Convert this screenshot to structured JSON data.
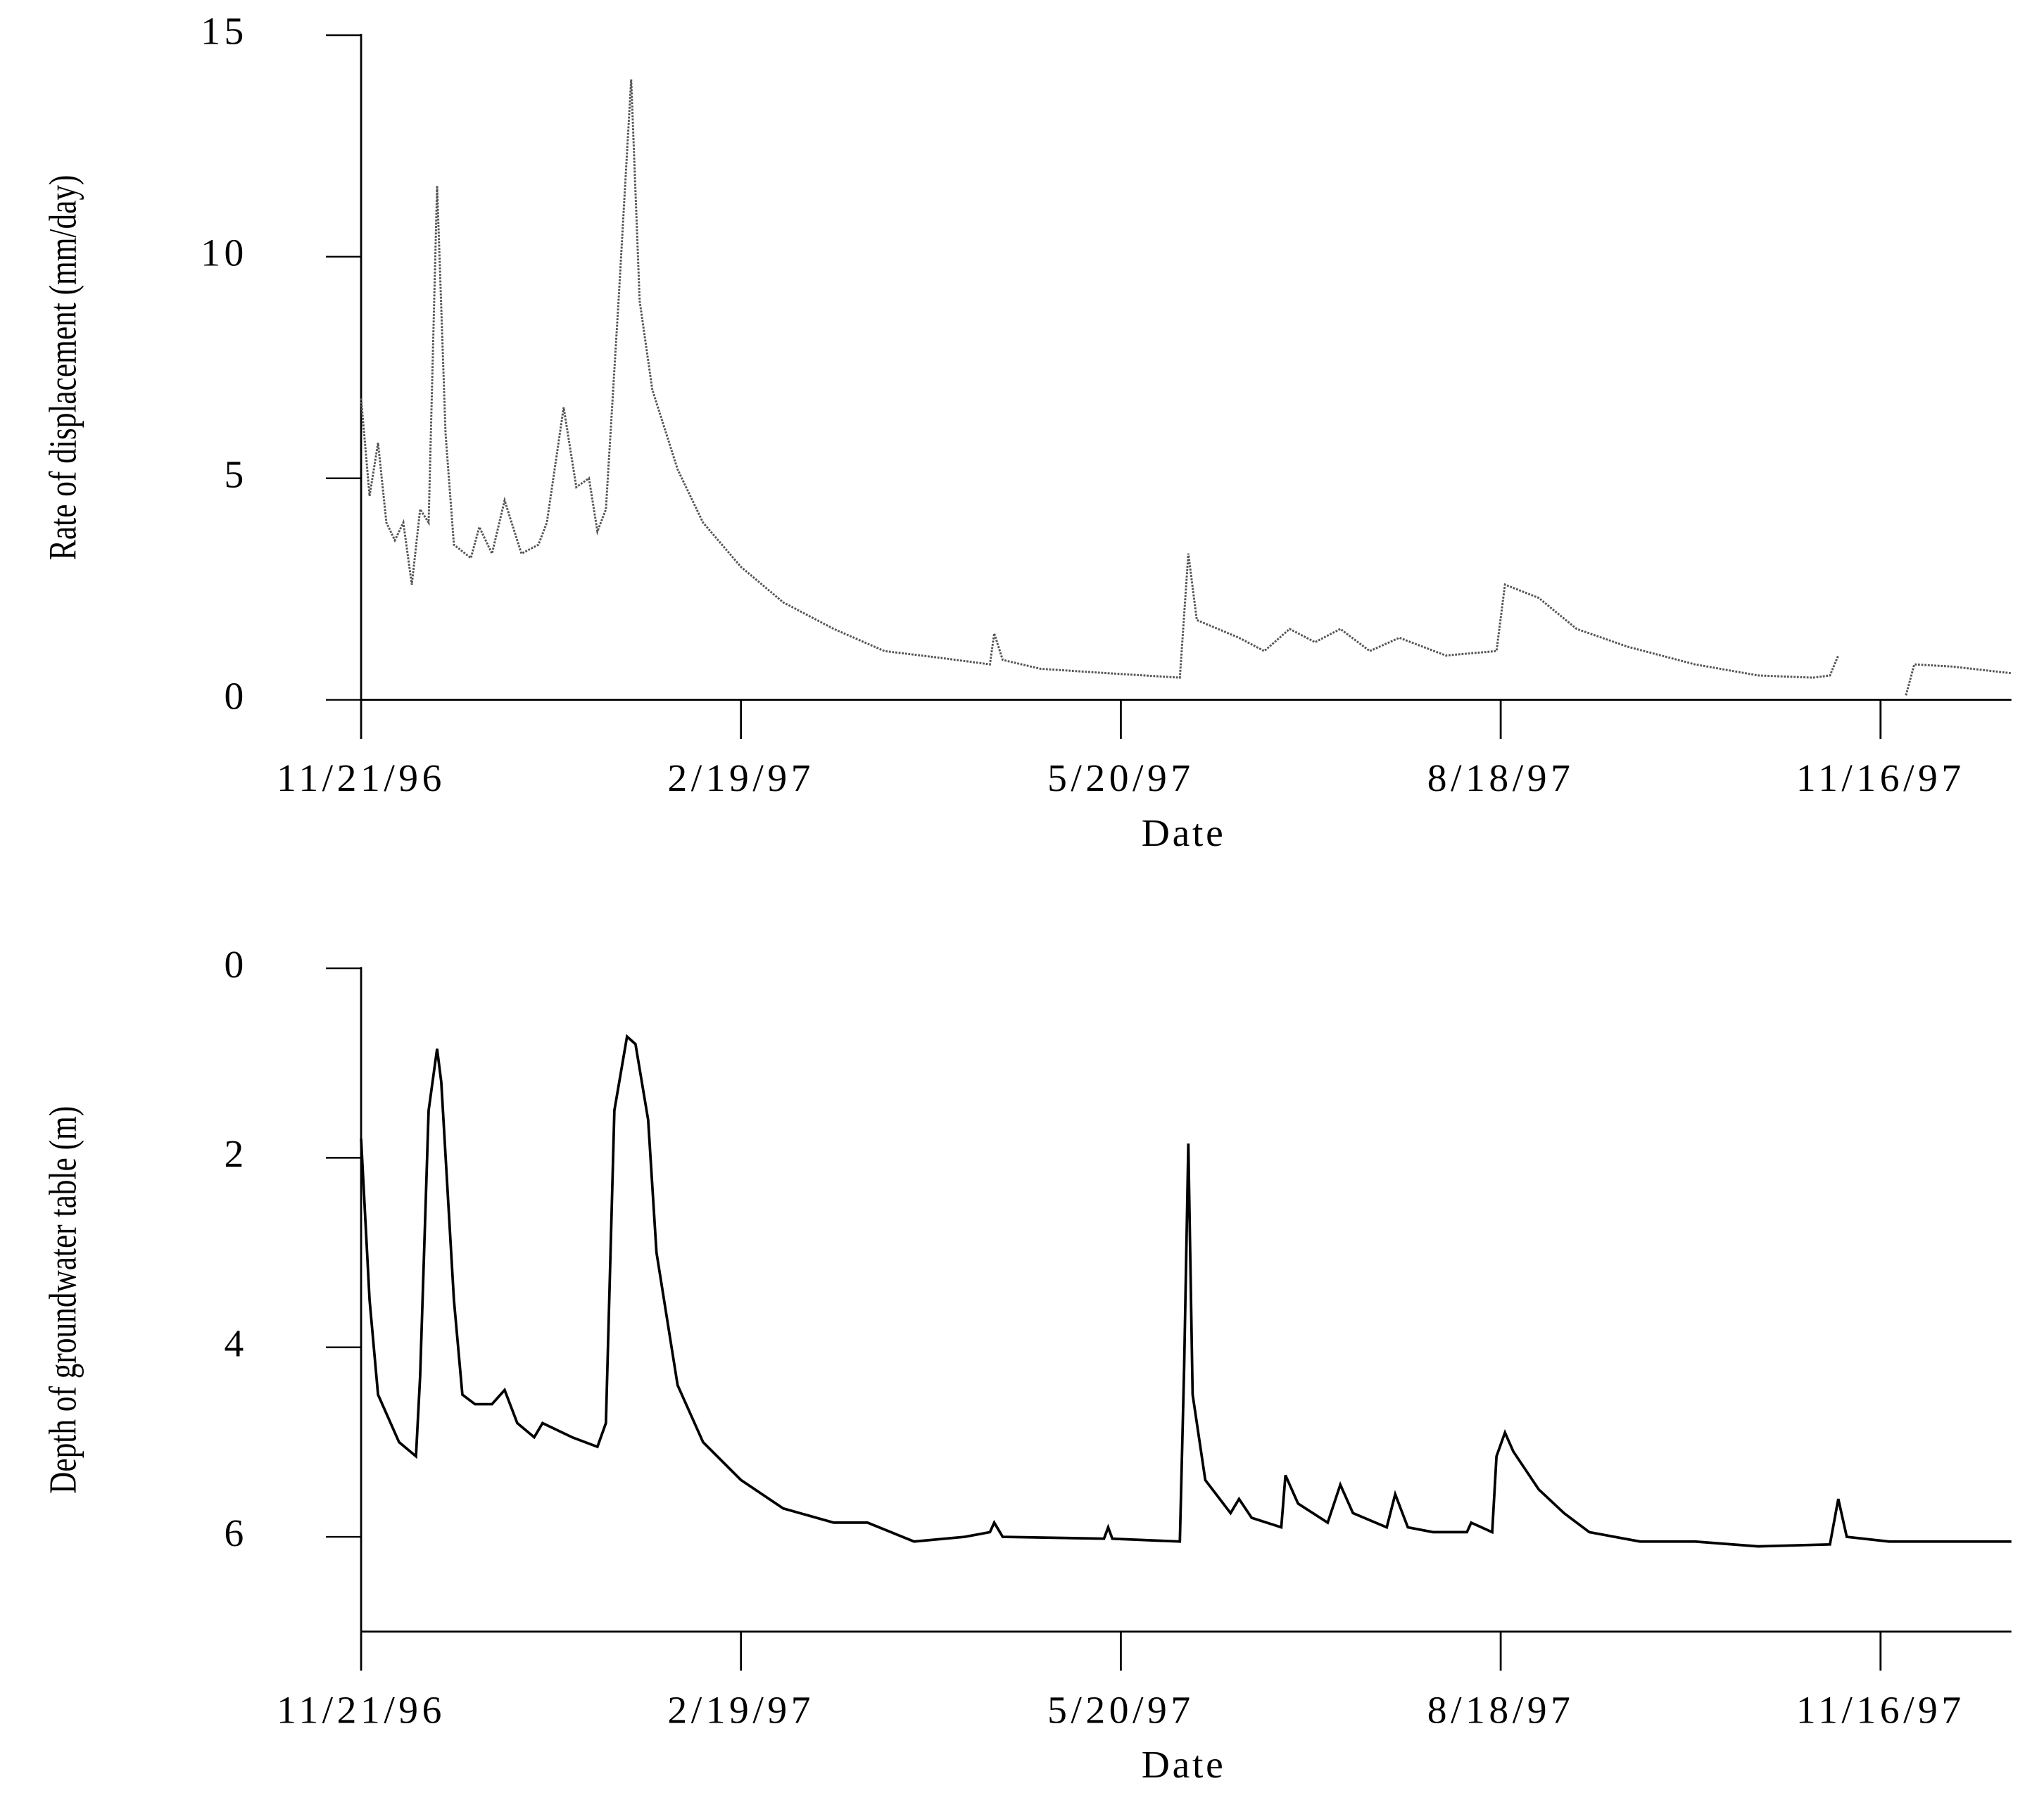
{
  "chart_data": [
    {
      "type": "line",
      "ylabel": "Rate of displacement (mm/day)",
      "xlabel": "Date",
      "color": "#555555",
      "line_style": "dotted",
      "x": [
        "1996-11-21",
        "1996-11-23",
        "1996-11-25",
        "1996-11-27",
        "1996-11-29",
        "1996-12-01",
        "1996-12-03",
        "1996-12-05",
        "1996-12-07",
        "1996-12-09",
        "1996-12-11",
        "1996-12-13",
        "1996-12-17",
        "1996-12-19",
        "1996-12-22",
        "1996-12-25",
        "1996-12-29",
        "1997-01-02",
        "1997-01-04",
        "1997-01-08",
        "1997-01-11",
        "1997-01-14",
        "1997-01-16",
        "1997-01-18",
        "1997-01-21",
        "1997-01-24",
        "1997-01-26",
        "1997-01-29",
        "1997-02-04",
        "1997-02-10",
        "1997-02-19",
        "1997-03-01",
        "1997-03-13",
        "1997-03-25",
        "1997-04-07",
        "1997-04-19",
        "1997-04-20",
        "1997-04-22",
        "1997-05-01",
        "1997-05-17",
        "1997-06-03",
        "1997-06-05",
        "1997-06-07",
        "1997-06-17",
        "1997-06-23",
        "1997-06-29",
        "1997-07-05",
        "1997-07-11",
        "1997-07-18",
        "1997-07-25",
        "1997-08-05",
        "1997-08-17",
        "1997-08-19",
        "1997-08-27",
        "1997-09-05",
        "1997-09-17",
        "1997-10-03",
        "1997-10-18",
        "1997-10-31",
        "1997-11-04",
        "1997-11-06",
        "1997-11-14",
        "1997-11-22",
        "1997-11-24",
        "1997-12-03",
        "1997-12-17"
      ],
      "values": [
        6.8,
        4.6,
        5.8,
        4.0,
        3.6,
        4.0,
        2.6,
        4.3,
        4.0,
        11.6,
        6,
        3.5,
        3.2,
        3.9,
        3.3,
        4.5,
        3.3,
        3.5,
        4.0,
        6.6,
        4.8,
        5.0,
        3.8,
        4.3,
        9,
        14,
        9,
        7,
        5.2,
        4,
        3.0,
        2.2,
        1.6,
        1.1,
        0.95,
        0.8,
        1.5,
        0.9,
        0.7,
        0.6,
        0.5,
        3.3,
        1.8,
        1.4,
        1.1,
        1.6,
        1.3,
        1.6,
        1.1,
        1.4,
        1.0,
        1.1,
        2.6,
        2.3,
        1.6,
        1.2,
        0.8,
        0.55,
        0.5,
        0.55,
        1.0,
        null,
        0.1,
        0.8,
        0.75,
        0.6
      ],
      "xlim": [
        "1996-11-21",
        "1997-12-17"
      ],
      "xticks": [
        {
          "value": "1996-11-21",
          "label": "11/21/96"
        },
        {
          "value": "1997-02-19",
          "label": "2/19/97"
        },
        {
          "value": "1997-05-20",
          "label": "5/20/97"
        },
        {
          "value": "1997-08-18",
          "label": "8/18/97"
        },
        {
          "value": "1997-11-16",
          "label": "11/16/97"
        }
      ],
      "ylim": [
        0,
        15
      ],
      "yticks": [
        0,
        5,
        10,
        15
      ]
    },
    {
      "type": "line",
      "ylabel": "Depth of groundwater table (m)",
      "xlabel": "Date",
      "color": "#000000",
      "line_style": "solid",
      "x": [
        "1996-11-21",
        "1996-11-23",
        "1996-11-25",
        "1996-11-30",
        "1996-12-04",
        "1996-12-05",
        "1996-12-07",
        "1996-12-09",
        "1996-12-10",
        "1996-12-13",
        "1996-12-15",
        "1996-12-18",
        "1996-12-22",
        "1996-12-25",
        "1996-12-28",
        "1997-01-01",
        "1997-01-03",
        "1997-01-10",
        "1997-01-16",
        "1997-01-18",
        "1997-01-20",
        "1997-01-23",
        "1997-01-25",
        "1997-01-28",
        "1997-01-30",
        "1997-02-04",
        "1997-02-10",
        "1997-02-19",
        "1997-03-01",
        "1997-03-13",
        "1997-03-21",
        "1997-04-01",
        "1997-04-13",
        "1997-04-19",
        "1997-04-20",
        "1997-04-22",
        "1997-05-16",
        "1997-05-17",
        "1997-05-18",
        "1997-06-03",
        "1997-06-04",
        "1997-06-05",
        "1997-06-06",
        "1997-06-09",
        "1997-06-15",
        "1997-06-17",
        "1997-06-20",
        "1997-06-27",
        "1997-06-28",
        "1997-07-01",
        "1997-07-08",
        "1997-07-11",
        "1997-07-14",
        "1997-07-22",
        "1997-07-24",
        "1997-07-27",
        "1997-08-02",
        "1997-08-10",
        "1997-08-11",
        "1997-08-16",
        "1997-08-17",
        "1997-08-19",
        "1997-08-21",
        "1997-08-27",
        "1997-09-02",
        "1997-09-08",
        "1997-09-20",
        "1997-10-03",
        "1997-10-18",
        "1997-11-04",
        "1997-11-06",
        "1997-11-08",
        "1997-11-18",
        "1997-12-17"
      ],
      "values": [
        1.8,
        3.5,
        4.5,
        5.0,
        5.15,
        4.3,
        1.5,
        0.85,
        1.2,
        3.5,
        4.5,
        4.6,
        4.6,
        4.45,
        4.8,
        4.95,
        4.8,
        4.95,
        5.05,
        4.8,
        1.5,
        0.72,
        0.8,
        1.6,
        3.0,
        4.4,
        5.0,
        5.4,
        5.7,
        5.85,
        5.85,
        6.05,
        6.0,
        5.95,
        5.85,
        6.0,
        6.02,
        5.9,
        6.02,
        6.05,
        4.2,
        1.85,
        4.5,
        5.4,
        5.75,
        5.6,
        5.8,
        5.9,
        5.35,
        5.65,
        5.85,
        5.45,
        5.75,
        5.9,
        5.55,
        5.9,
        5.95,
        5.95,
        5.85,
        5.95,
        5.15,
        4.9,
        5.1,
        5.5,
        5.75,
        5.95,
        6.05,
        6.05,
        6.1,
        6.08,
        5.6,
        6.0,
        6.05,
        6.05
      ],
      "xlim": [
        "1996-11-21",
        "1997-12-17"
      ],
      "xticks": [
        {
          "value": "1996-11-21",
          "label": "11/21/96"
        },
        {
          "value": "1997-02-19",
          "label": "2/19/97"
        },
        {
          "value": "1997-05-20",
          "label": "5/20/97"
        },
        {
          "value": "1997-08-18",
          "label": "8/18/97"
        },
        {
          "value": "1997-11-16",
          "label": "11/16/97"
        }
      ],
      "ylim": [
        7,
        0
      ],
      "yticks": [
        0,
        2,
        4,
        6
      ]
    }
  ]
}
